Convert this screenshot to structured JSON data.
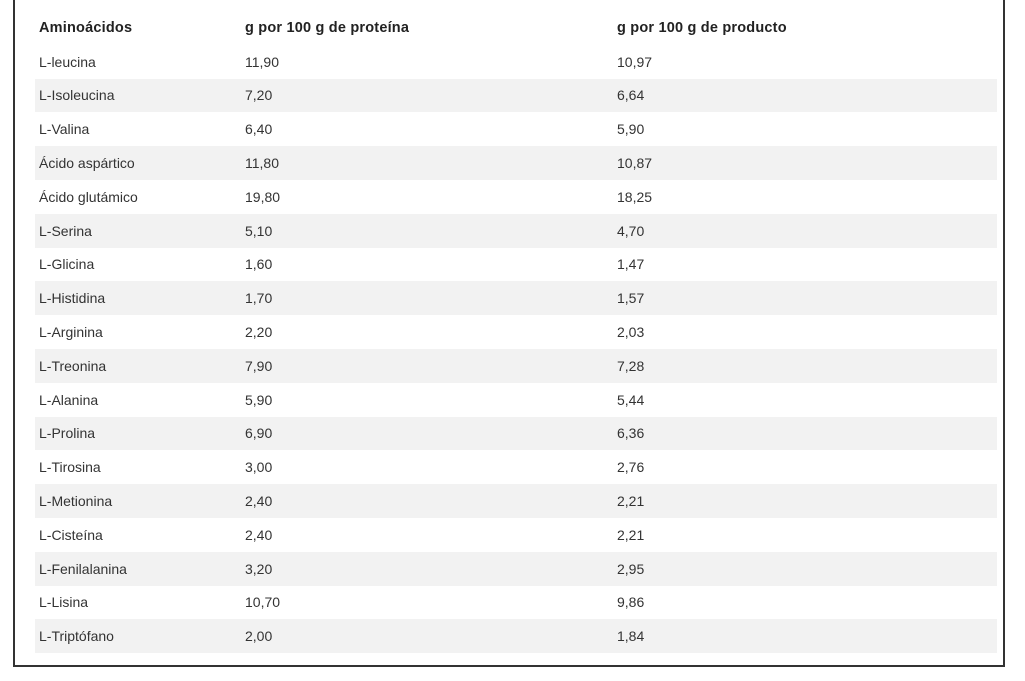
{
  "table": {
    "headers": [
      "Aminoácidos",
      "g por 100 g de proteína",
      "g por 100 g de producto"
    ],
    "rows": [
      [
        "L-leucina",
        "11,90",
        "10,97"
      ],
      [
        "L-Isoleucina",
        "7,20",
        "6,64"
      ],
      [
        "L-Valina",
        "6,40",
        "5,90"
      ],
      [
        "Ácido aspártico",
        "11,80",
        "10,87"
      ],
      [
        "Ácido glutámico",
        "19,80",
        "18,25"
      ],
      [
        "L-Serina",
        "5,10",
        "4,70"
      ],
      [
        "L-Glicina",
        "1,60",
        "1,47"
      ],
      [
        "L-Histidina",
        "1,70",
        "1,57"
      ],
      [
        "L-Arginina",
        "2,20",
        "2,03"
      ],
      [
        "L-Treonina",
        "7,90",
        "7,28"
      ],
      [
        "L-Alanina",
        "5,90",
        "5,44"
      ],
      [
        "L-Prolina",
        "6,90",
        "6,36"
      ],
      [
        "L-Tirosina",
        "3,00",
        "2,76"
      ],
      [
        "L-Metionina",
        "2,40",
        "2,21"
      ],
      [
        "L-Cisteína",
        "2,40",
        "2,21"
      ],
      [
        "L-Fenilalanina",
        "3,20",
        "2,95"
      ],
      [
        "L-Lisina",
        "10,70",
        "9,86"
      ],
      [
        "L-Triptófano",
        "2,00",
        "1,84"
      ]
    ]
  },
  "colors": {
    "border": "#333333",
    "stripe": "#f2f2f2",
    "text": "#333333",
    "header_text": "#222222"
  }
}
